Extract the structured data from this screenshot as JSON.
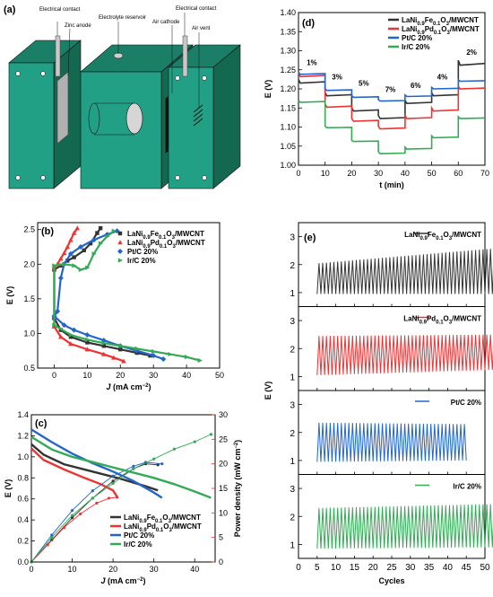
{
  "panel_a": {
    "label": "(a)",
    "callouts": [
      "Electrical contact",
      "Zinc anode",
      "Electrolyte reservoir",
      "Air cathode",
      "Electrical contact",
      "Air vent"
    ],
    "colors": {
      "housing": "#22a086",
      "dark": "#1b7f68",
      "anode": "#b0b0b0",
      "cathode": "#111111"
    }
  },
  "chart_data": [
    {
      "id": "d",
      "type": "line",
      "panel_label": "(d)",
      "xlabel": "t (min)",
      "ylabel": "E (V)",
      "xlim": [
        0,
        70
      ],
      "ylim": [
        1.0,
        1.4
      ],
      "xticks": [
        0,
        10,
        20,
        30,
        40,
        50,
        60,
        70
      ],
      "yticks": [
        1.0,
        1.05,
        1.1,
        1.15,
        1.2,
        1.25,
        1.3,
        1.35,
        1.4
      ],
      "segments": [
        [
          0,
          10
        ],
        [
          10,
          20
        ],
        [
          20,
          30
        ],
        [
          30,
          40
        ],
        [
          40,
          50
        ],
        [
          50,
          60
        ],
        [
          60,
          70
        ]
      ],
      "annotations": [
        {
          "text": "1%",
          "x": 5,
          "y": 1.262
        },
        {
          "text": "3%",
          "x": 14.5,
          "y": 1.225
        },
        {
          "text": "5%",
          "x": 24.5,
          "y": 1.208
        },
        {
          "text": "7%",
          "x": 34.5,
          "y": 1.192
        },
        {
          "text": "6%",
          "x": 44,
          "y": 1.202
        },
        {
          "text": "4%",
          "x": 54,
          "y": 1.225
        },
        {
          "text": "2%",
          "x": 65,
          "y": 1.29
        }
      ],
      "series": [
        {
          "name": "LaNi0.9Fe0.1O3/MWCNT",
          "name_parts": [
            "LaNi",
            "0.9",
            "Fe",
            "0.1",
            "O",
            "3",
            "/MWCNT"
          ],
          "color": "#333333",
          "levels": [
            [
              1.215,
              1.225
            ],
            [
              1.182,
              1.19
            ],
            [
              1.142,
              1.15
            ],
            [
              1.122,
              1.13
            ],
            [
              1.162,
              1.17
            ],
            [
              1.182,
              1.19
            ],
            [
              1.262,
              1.275
            ]
          ]
        },
        {
          "name": "LaNi0.9Pd0.1O3/MWCNT",
          "name_parts": [
            "LaNi",
            "0.9",
            "Pd",
            "0.1",
            "O",
            "3",
            "/MWCNT"
          ],
          "color": "#ee3333",
          "levels": [
            [
              1.232,
              1.242
            ],
            [
              1.152,
              1.16
            ],
            [
              1.115,
              1.122
            ],
            [
              1.095,
              1.102
            ],
            [
              1.122,
              1.13
            ],
            [
              1.142,
              1.15
            ],
            [
              1.2,
              1.206
            ]
          ]
        },
        {
          "name": "Pt/C 20%",
          "name_parts": [
            "Pt/C 20%"
          ],
          "color": "#2266cc",
          "levels": [
            [
              1.238,
              1.244
            ],
            [
              1.196,
              1.2
            ],
            [
              1.178,
              1.182
            ],
            [
              1.168,
              1.172
            ],
            [
              1.18,
              1.184
            ],
            [
              1.2,
              1.204
            ],
            [
              1.22,
              1.224
            ]
          ]
        },
        {
          "name": "Ir/C 20%",
          "name_parts": [
            "Ir/C 20%"
          ],
          "color": "#33aa55",
          "levels": [
            [
              1.165,
              1.17
            ],
            [
              1.098,
              1.102
            ],
            [
              1.062,
              1.065
            ],
            [
              1.03,
              1.035
            ],
            [
              1.042,
              1.047
            ],
            [
              1.072,
              1.077
            ],
            [
              1.122,
              1.127
            ]
          ]
        }
      ]
    },
    {
      "id": "b",
      "type": "line",
      "panel_label": "(b)",
      "xlabel_parts": [
        "J",
        " (mA cm",
        "−2",
        ")"
      ],
      "ylabel": "E (V)",
      "xlim": [
        -5,
        50
      ],
      "ylim": [
        0.5,
        2.6
      ],
      "xticks": [
        0,
        10,
        20,
        30,
        40,
        50
      ],
      "yticks": [
        0.5,
        1.0,
        1.5,
        2.0,
        2.5
      ],
      "series": [
        {
          "name": "LaNi0.9Fe0.1O3/MWCNT",
          "name_parts": [
            "LaNi",
            "0.9",
            "Fe",
            "0.1",
            "O",
            "3",
            "/MWCNT"
          ],
          "color": "#333333",
          "marker": "square",
          "discharge": [
            [
              0,
              1.22
            ],
            [
              2,
              1.05
            ],
            [
              5,
              0.95
            ],
            [
              10,
              0.87
            ],
            [
              15,
              0.82
            ],
            [
              20,
              0.77
            ],
            [
              25,
              0.72
            ],
            [
              29,
              0.68
            ]
          ],
          "charge": [
            [
              0,
              1.92
            ],
            [
              2,
              1.98
            ],
            [
              4,
              2.05
            ],
            [
              6,
              2.1
            ],
            [
              9,
              2.2
            ],
            [
              11,
              2.3
            ],
            [
              13,
              2.45
            ],
            [
              14,
              2.52
            ]
          ]
        },
        {
          "name": "LaNi0.9Pd0.1O3/MWCNT",
          "name_parts": [
            "LaNi",
            "0.9",
            "Pd",
            "0.1",
            "O",
            "3",
            "/MWCNT"
          ],
          "color": "#ee3333",
          "marker": "triangle-up",
          "discharge": [
            [
              0,
              1.1
            ],
            [
              2,
              0.95
            ],
            [
              5,
              0.85
            ],
            [
              10,
              0.77
            ],
            [
              15,
              0.7
            ],
            [
              18,
              0.65
            ],
            [
              21,
              0.6
            ]
          ],
          "charge": [
            [
              0,
              1.95
            ],
            [
              1,
              2.0
            ],
            [
              2,
              2.08
            ],
            [
              3,
              2.16
            ],
            [
              4,
              2.25
            ],
            [
              5,
              2.35
            ],
            [
              6,
              2.45
            ],
            [
              7,
              2.52
            ]
          ]
        },
        {
          "name": "Pt/C 20%",
          "name_parts": [
            "Pt/C 20%"
          ],
          "color": "#2266cc",
          "marker": "diamond",
          "discharge": [
            [
              0,
              1.25
            ],
            [
              3,
              1.12
            ],
            [
              6,
              1.05
            ],
            [
              10,
              0.98
            ],
            [
              15,
              0.9
            ],
            [
              20,
              0.82
            ],
            [
              25,
              0.75
            ],
            [
              30,
              0.68
            ],
            [
              33,
              0.63
            ]
          ],
          "charge": [
            [
              1,
              1.32
            ],
            [
              2,
              1.8
            ],
            [
              3,
              2.0
            ],
            [
              5,
              2.15
            ],
            [
              8,
              2.25
            ],
            [
              12,
              2.35
            ],
            [
              16,
              2.43
            ],
            [
              19,
              2.48
            ]
          ]
        },
        {
          "name": "Ir/C 20%",
          "name_parts": [
            "Ir/C 20%"
          ],
          "color": "#33aa55",
          "marker": "triangle-right",
          "discharge": [
            [
              0,
              1.12
            ],
            [
              5,
              0.98
            ],
            [
              10,
              0.91
            ],
            [
              15,
              0.86
            ],
            [
              20,
              0.82
            ],
            [
              25,
              0.78
            ],
            [
              30,
              0.74
            ],
            [
              35,
              0.7
            ],
            [
              40,
              0.66
            ],
            [
              44,
              0.61
            ]
          ],
          "charge": [
            [
              0,
              1.98
            ],
            [
              3,
              2.0
            ],
            [
              6,
              1.98
            ],
            [
              8,
              1.92
            ],
            [
              10,
              1.95
            ],
            [
              12,
              2.15
            ],
            [
              14,
              2.3
            ],
            [
              16,
              2.4
            ],
            [
              18,
              2.48
            ]
          ]
        }
      ]
    },
    {
      "id": "c",
      "type": "line",
      "panel_label": "(c)",
      "xlabel_parts": [
        "J",
        " (mA cm",
        "−2",
        ")"
      ],
      "ylabel": "E (V)",
      "y2label_parts": [
        "Power density (mW cm",
        "−2",
        ")"
      ],
      "xlim": [
        0,
        45
      ],
      "ylim": [
        0,
        1.4
      ],
      "y2lim": [
        0,
        30
      ],
      "xticks": [
        0,
        10,
        20,
        30,
        40
      ],
      "yticks": [
        0.0,
        0.2,
        0.4,
        0.6,
        0.8,
        1.0,
        1.2,
        1.4
      ],
      "y2ticks": [
        0,
        5,
        10,
        15,
        20,
        25,
        30
      ],
      "series": [
        {
          "name": "LaNi0.9Fe0.1O3/MWCNT",
          "name_parts": [
            "LaNi",
            "0.9",
            "Fe",
            "0.1",
            "O",
            "3",
            "/MWCNT"
          ],
          "color": "#333333",
          "polarization": [
            [
              0,
              1.12
            ],
            [
              3,
              1.02
            ],
            [
              8,
              0.93
            ],
            [
              15,
              0.86
            ],
            [
              22,
              0.79
            ],
            [
              28,
              0.72
            ],
            [
              31,
              0.68
            ]
          ],
          "power": [
            [
              0,
              0
            ],
            [
              5,
              4.5
            ],
            [
              10,
              9
            ],
            [
              15,
              13
            ],
            [
              20,
              16.5
            ],
            [
              25,
              19
            ],
            [
              28,
              20
            ],
            [
              31,
              19.8
            ]
          ]
        },
        {
          "name": "LaNi0.9Pd0.1O3/MWCNT",
          "name_parts": [
            "LaNi",
            "0.9",
            "Pd",
            "0.1",
            "O",
            "3",
            "/MWCNT"
          ],
          "color": "#ee3333",
          "polarization": [
            [
              0,
              1.08
            ],
            [
              3,
              0.97
            ],
            [
              8,
              0.88
            ],
            [
              13,
              0.8
            ],
            [
              17,
              0.74
            ],
            [
              20,
              0.68
            ],
            [
              21,
              0.62
            ]
          ],
          "power": [
            [
              0,
              0
            ],
            [
              4,
              3.5
            ],
            [
              8,
              7
            ],
            [
              12,
              9.8
            ],
            [
              16,
              12
            ],
            [
              19,
              13
            ],
            [
              21,
              13.2
            ]
          ]
        },
        {
          "name": "Pt/C 20%",
          "name_parts": [
            "Pt/C 20%"
          ],
          "color": "#2266cc",
          "polarization": [
            [
              0,
              1.26
            ],
            [
              5,
              1.14
            ],
            [
              10,
              1.03
            ],
            [
              15,
              0.94
            ],
            [
              20,
              0.86
            ],
            [
              25,
              0.77
            ],
            [
              30,
              0.66
            ],
            [
              32,
              0.61
            ]
          ],
          "power": [
            [
              0,
              0
            ],
            [
              5,
              5.5
            ],
            [
              10,
              10.5
            ],
            [
              15,
              14.5
            ],
            [
              20,
              17.5
            ],
            [
              25,
              19.5
            ],
            [
              28,
              20.3
            ],
            [
              32,
              20
            ]
          ]
        },
        {
          "name": "Ir/C 20%",
          "name_parts": [
            "Ir/C 20%"
          ],
          "color": "#33aa55",
          "polarization": [
            [
              0,
              1.19
            ],
            [
              5,
              1.07
            ],
            [
              10,
              1.0
            ],
            [
              15,
              0.95
            ],
            [
              20,
              0.9
            ],
            [
              25,
              0.85
            ],
            [
              30,
              0.8
            ],
            [
              35,
              0.74
            ],
            [
              40,
              0.67
            ],
            [
              44,
              0.61
            ]
          ],
          "power": [
            [
              0,
              0
            ],
            [
              5,
              5
            ],
            [
              10,
              9.5
            ],
            [
              15,
              13
            ],
            [
              20,
              16
            ],
            [
              25,
              19
            ],
            [
              30,
              21
            ],
            [
              35,
              23
            ],
            [
              40,
              24.5
            ],
            [
              44,
              26
            ]
          ]
        }
      ]
    },
    {
      "id": "e",
      "type": "line",
      "panel_label": "(e)",
      "xlabel": "Cycles",
      "ylabel": "E (V)",
      "xlim": [
        0,
        50
      ],
      "xticks": [
        0,
        5,
        10,
        15,
        20,
        25,
        30,
        35,
        40,
        45,
        50
      ],
      "ylim": [
        0.5,
        3.5
      ],
      "yticks": [
        1,
        2,
        3
      ],
      "series": [
        {
          "name": "LaNi0.9Fe0.1O3/MWCNT",
          "name_parts": [
            "LaNi",
            "0.9",
            "Fe",
            "0.1",
            "O",
            "3",
            "/MWCNT"
          ],
          "color": "#333333",
          "cycles": 50,
          "low_start": 0.95,
          "low_end": 0.95,
          "high_start": 2.05,
          "high_end": 2.6
        },
        {
          "name": "LaNi0.9Pd0.1O3/MWCNT",
          "name_parts": [
            "LaNi",
            "0.9",
            "Pd",
            "0.1",
            "O",
            "3",
            "/MWCNT"
          ],
          "color": "#ee3333",
          "cycles": 50,
          "low_start": 1.05,
          "low_end": 1.25,
          "high_start": 2.45,
          "high_end": 2.5
        },
        {
          "name": "Pt/C 20%",
          "name_parts": [
            "Pt/C 20%"
          ],
          "color": "#2266cc",
          "cycles": 40,
          "low_start": 0.95,
          "low_end": 1.0,
          "high_start": 2.35,
          "high_end": 2.3
        },
        {
          "name": "Ir/C 20%",
          "name_parts": [
            "Ir/C 20%"
          ],
          "color": "#33aa55",
          "cycles": 50,
          "low_start": 0.85,
          "low_end": 0.9,
          "high_start": 2.3,
          "high_end": 2.45
        }
      ]
    }
  ]
}
